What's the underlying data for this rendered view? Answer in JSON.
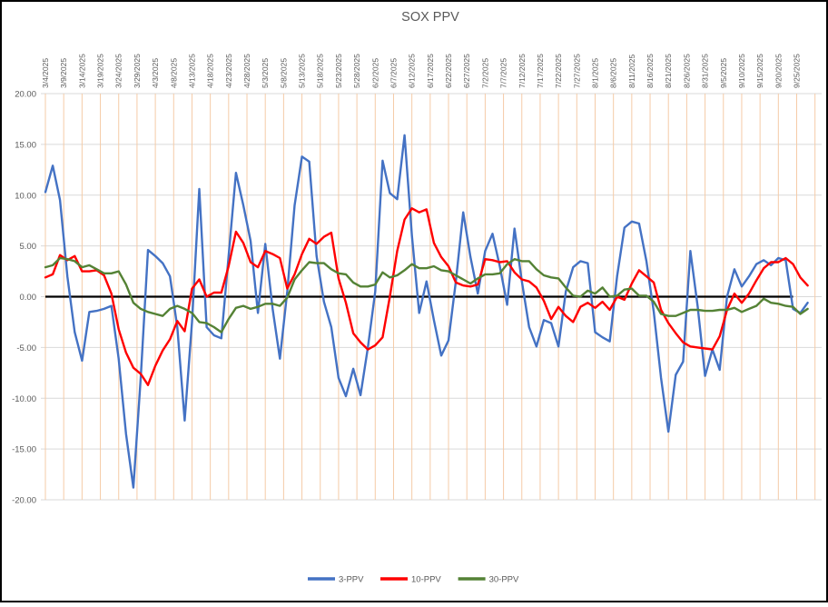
{
  "chart_data": {
    "type": "line",
    "title": "SOX PPV",
    "x_labels_position": "top",
    "x_label_rotation": -90,
    "x_tick_step_days": 5,
    "sample_step_days": 2,
    "ylim": [
      -20,
      20
    ],
    "y_tick_interval": 5,
    "grid": {
      "vertical": true,
      "horizontal": true
    },
    "legend_position": "bottom",
    "zero_line": true,
    "colors": {
      "vertical_grid": "#F5CBA7",
      "horizontal_grid": "#D9D9D9",
      "zero_line": "#000000",
      "axis_text": "#595959",
      "title_text": "#595959",
      "frame_border": "#000000",
      "background": "#FFFFFF"
    },
    "y_tick_labels": [
      "20.00",
      "15.00",
      "10.00",
      "5.00",
      "0.00",
      "-5.00",
      "-10.00",
      "-15.00",
      "-20.00"
    ],
    "x_tick_labels": [
      "3/4/2025",
      "3/9/2025",
      "3/14/2025",
      "3/19/2025",
      "3/24/2025",
      "3/29/2025",
      "4/3/2025",
      "4/8/2025",
      "4/13/2025",
      "4/18/2025",
      "4/23/2025",
      "4/28/2025",
      "5/3/2025",
      "5/8/2025",
      "5/13/2025",
      "5/18/2025",
      "5/23/2025",
      "5/28/2025",
      "6/2/2025",
      "6/7/2025",
      "6/12/2025",
      "6/17/2025",
      "6/22/2025",
      "6/27/2025",
      "7/2/2025",
      "7/7/2025",
      "7/12/2025",
      "7/17/2025",
      "7/22/2025",
      "7/27/2025",
      "8/1/2025",
      "8/6/2025",
      "8/11/2025",
      "8/16/2025",
      "8/21/2025",
      "8/26/2025",
      "8/31/2025",
      "9/5/2025",
      "9/10/2025",
      "9/15/2025",
      "9/20/2025",
      "9/25/2025"
    ],
    "series": [
      {
        "name": "3-PPV",
        "color": "#4472C4",
        "values": [
          10.3,
          12.9,
          9.5,
          2.0,
          -3.5,
          -6.3,
          -1.5,
          -1.4,
          -1.2,
          -0.9,
          -6.1,
          -13.5,
          -18.8,
          -8.0,
          4.6,
          4.0,
          3.3,
          2.0,
          -3.0,
          -12.2,
          -2.5,
          10.6,
          -3.0,
          -3.8,
          -4.1,
          4.0,
          12.2,
          9.0,
          5.5,
          -1.6,
          5.2,
          -1.2,
          -6.1,
          0.5,
          9.0,
          13.8,
          13.3,
          4.0,
          -0.5,
          -3.0,
          -8.0,
          -9.8,
          -7.1,
          -9.7,
          -5.0,
          0.5,
          13.4,
          10.2,
          9.6,
          15.9,
          6.0,
          -1.6,
          1.5,
          -2.3,
          -5.8,
          -4.3,
          1.5,
          8.3,
          3.9,
          0.3,
          4.5,
          6.2,
          3.0,
          -0.8,
          6.7,
          1.5,
          -3.0,
          -4.9,
          -2.3,
          -2.6,
          -4.9,
          0.5,
          2.9,
          3.5,
          3.3,
          -3.5,
          -4.0,
          -4.4,
          2.0,
          6.8,
          7.4,
          7.2,
          3.5,
          -1.5,
          -8.0,
          -13.3,
          -7.7,
          -6.4,
          4.5,
          -1.0,
          -7.8,
          -5.2,
          -7.2,
          0.0,
          2.7,
          1.0,
          2.0,
          3.2,
          3.6,
          3.1,
          3.8,
          3.6,
          -1.2,
          -1.6,
          -0.6
        ]
      },
      {
        "name": "10-PPV",
        "color": "#FF0000",
        "values": [
          1.9,
          2.2,
          4.1,
          3.6,
          4.0,
          2.5,
          2.5,
          2.6,
          2.1,
          0.3,
          -3.2,
          -5.5,
          -7.0,
          -7.6,
          -8.7,
          -6.8,
          -5.3,
          -4.2,
          -2.4,
          -3.4,
          0.8,
          1.7,
          0.0,
          0.4,
          0.4,
          3.0,
          6.4,
          5.3,
          3.4,
          2.9,
          4.5,
          4.2,
          3.8,
          0.8,
          2.2,
          4.2,
          5.7,
          5.2,
          5.9,
          6.3,
          1.8,
          -0.6,
          -3.6,
          -4.5,
          -5.2,
          -4.8,
          -4.0,
          0.0,
          4.5,
          7.6,
          8.7,
          8.3,
          8.6,
          5.3,
          3.9,
          3.0,
          1.4,
          1.1,
          1.0,
          1.2,
          3.7,
          3.6,
          3.4,
          3.5,
          2.4,
          1.7,
          1.5,
          0.9,
          -0.4,
          -2.2,
          -1.0,
          -1.9,
          -2.5,
          -1.0,
          -0.6,
          -1.1,
          -0.5,
          -1.3,
          0.0,
          -0.3,
          1.3,
          2.6,
          2.0,
          1.4,
          -1.3,
          -2.6,
          -3.6,
          -4.5,
          -4.9,
          -5.0,
          -5.1,
          -5.2,
          -3.9,
          -1.3,
          0.3,
          -0.6,
          0.3,
          1.6,
          2.8,
          3.4,
          3.4,
          3.8,
          3.2,
          1.9,
          1.1
        ]
      },
      {
        "name": "30-PPV",
        "color": "#548235",
        "values": [
          2.9,
          3.1,
          3.8,
          3.7,
          3.5,
          2.9,
          3.1,
          2.7,
          2.3,
          2.3,
          2.5,
          1.2,
          -0.6,
          -1.2,
          -1.5,
          -1.7,
          -1.9,
          -1.2,
          -0.9,
          -1.2,
          -1.6,
          -2.5,
          -2.6,
          -3.0,
          -3.5,
          -2.2,
          -1.1,
          -0.9,
          -1.2,
          -1.0,
          -0.7,
          -0.7,
          -0.9,
          -0.1,
          1.7,
          2.6,
          3.4,
          3.3,
          3.3,
          2.7,
          2.3,
          2.2,
          1.4,
          1.0,
          1.0,
          1.2,
          2.4,
          1.9,
          2.1,
          2.6,
          3.2,
          2.8,
          2.8,
          3.0,
          2.6,
          2.5,
          2.1,
          1.7,
          1.3,
          1.8,
          2.2,
          2.2,
          2.3,
          3.2,
          3.7,
          3.5,
          3.5,
          2.7,
          2.1,
          1.9,
          1.8,
          0.9,
          0.1,
          0.0,
          0.6,
          0.3,
          0.9,
          0.0,
          0.1,
          0.7,
          0.8,
          0.1,
          0.1,
          -0.5,
          -1.7,
          -1.9,
          -1.9,
          -1.6,
          -1.3,
          -1.3,
          -1.4,
          -1.4,
          -1.3,
          -1.3,
          -1.1,
          -1.5,
          -1.2,
          -0.9,
          -0.2,
          -0.6,
          -0.7,
          -0.9,
          -1.0,
          -1.7,
          -1.2
        ]
      }
    ]
  }
}
